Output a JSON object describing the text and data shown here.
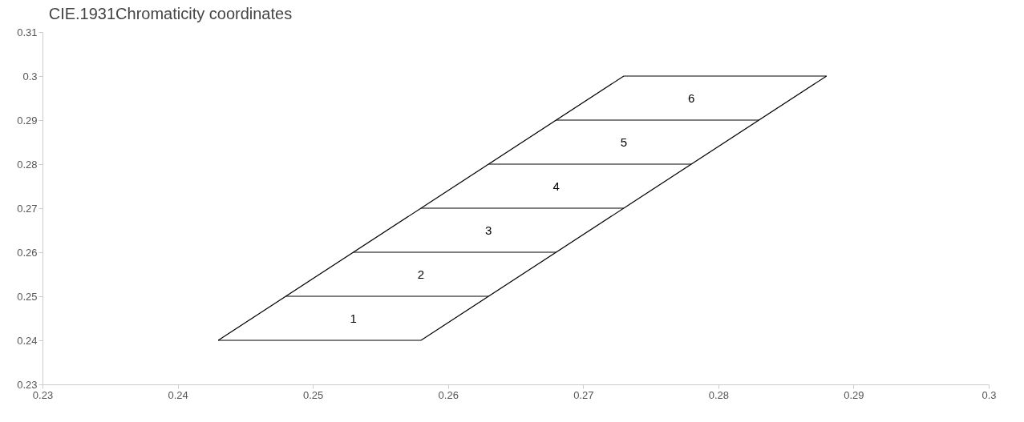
{
  "chart_data": {
    "type": "line",
    "title": "CIE.1931Chromaticity coordinates",
    "xlim": [
      0.23,
      0.3
    ],
    "xticks": [
      0.23,
      0.24,
      0.25,
      0.26,
      0.27,
      0.28,
      0.29,
      0.3
    ],
    "ylim": [
      0.23,
      0.31
    ],
    "yticks": [
      0.23,
      0.24,
      0.25,
      0.26,
      0.27,
      0.28,
      0.29,
      0.3,
      0.31
    ],
    "series": [
      {
        "color": "#000000",
        "x": [
          0.243,
          0.258
        ],
        "values": [
          0.24,
          0.24
        ]
      },
      {
        "color": "#000000",
        "x": [
          0.248,
          0.263
        ],
        "values": [
          0.25,
          0.25
        ]
      },
      {
        "color": "#000000",
        "x": [
          0.253,
          0.268
        ],
        "values": [
          0.26,
          0.26
        ]
      },
      {
        "color": "#000000",
        "x": [
          0.258,
          0.273
        ],
        "values": [
          0.27,
          0.27
        ]
      },
      {
        "color": "#000000",
        "x": [
          0.263,
          0.278
        ],
        "values": [
          0.28,
          0.28
        ]
      },
      {
        "color": "#000000",
        "x": [
          0.268,
          0.283
        ],
        "values": [
          0.29,
          0.29
        ]
      },
      {
        "color": "#000000",
        "x": [
          0.273,
          0.288
        ],
        "values": [
          0.3,
          0.3
        ]
      },
      {
        "color": "#000000",
        "x": [
          0.243,
          0.273
        ],
        "values": [
          0.24,
          0.3
        ]
      },
      {
        "color": "#000000",
        "x": [
          0.258,
          0.288
        ],
        "values": [
          0.24,
          0.3
        ]
      }
    ],
    "annotations": [
      "1",
      "2",
      "3",
      "4",
      "5",
      "6"
    ]
  }
}
